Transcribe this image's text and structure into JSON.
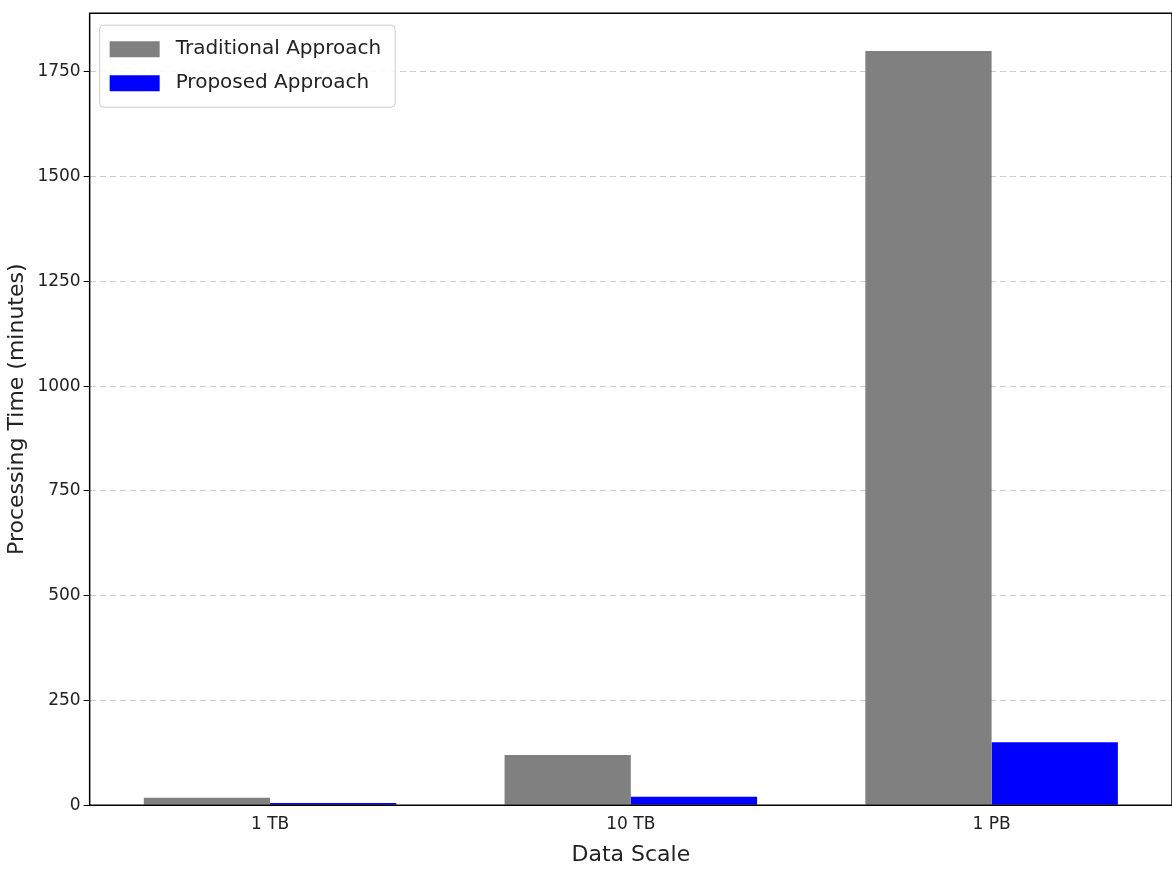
{
  "chart_data": {
    "type": "bar",
    "xlabel": "Data Scale",
    "ylabel": "Processing Time (minutes)",
    "categories": [
      "1 TB",
      "10 TB",
      "1 PB"
    ],
    "series": [
      {
        "name": "Traditional Approach",
        "color": "#808080",
        "values": [
          18,
          120,
          1800
        ]
      },
      {
        "name": "Proposed Approach",
        "color": "#0000ff",
        "values": [
          5,
          20,
          150
        ]
      }
    ],
    "ylim": [
      0,
      1890
    ],
    "yticks": [
      0,
      250,
      500,
      750,
      1000,
      1250,
      1500,
      1750
    ],
    "grid": "y",
    "legend": "top left"
  }
}
